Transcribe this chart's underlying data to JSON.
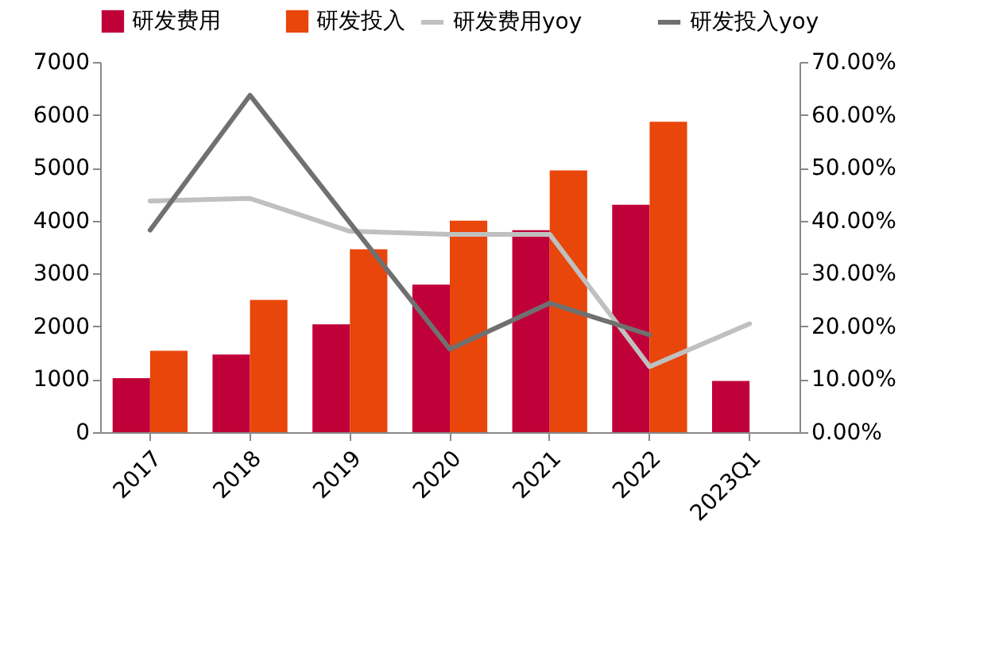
{
  "chart_data": {
    "type": "bar",
    "categories": [
      "2017",
      "2018",
      "2019",
      "2020",
      "2021",
      "2022",
      "2023Q1"
    ],
    "series": [
      {
        "name": "研发费用",
        "color": "#c00038",
        "values": [
          1020,
          1470,
          2040,
          2790,
          3820,
          4300,
          970
        ]
      },
      {
        "name": "研发投入",
        "color": "#e8460a",
        "values": [
          1540,
          2500,
          3460,
          4000,
          4950,
          5870,
          null
        ]
      },
      {
        "name": "研发费用yoy",
        "type": "line",
        "axis": "y2",
        "color": "#c0c0c0",
        "values": [
          43.7,
          44.2,
          38.0,
          37.4,
          37.4,
          12.4,
          20.5
        ]
      },
      {
        "name": "研发投入yoy",
        "type": "line",
        "axis": "y2",
        "color": "#707070",
        "values": [
          38.2,
          63.7,
          39.6,
          15.7,
          24.4,
          18.4,
          null
        ]
      }
    ],
    "ylim": [
      0,
      7000
    ],
    "yticks": [
      0,
      1000,
      2000,
      3000,
      4000,
      5000,
      6000,
      7000
    ],
    "y2lim": [
      0,
      70
    ],
    "y2ticks": [
      {
        "value": 0,
        "label": "0.00%"
      },
      {
        "value": 10,
        "label": "10.00%"
      },
      {
        "value": 20,
        "label": "20.00%"
      },
      {
        "value": 30,
        "label": "30.00%"
      },
      {
        "value": 40,
        "label": "40.00%"
      },
      {
        "value": 50,
        "label": "50.00%"
      },
      {
        "value": 60,
        "label": "60.00%"
      },
      {
        "value": 70,
        "label": "70.00%"
      }
    ],
    "legend": "top",
    "grid": false
  }
}
